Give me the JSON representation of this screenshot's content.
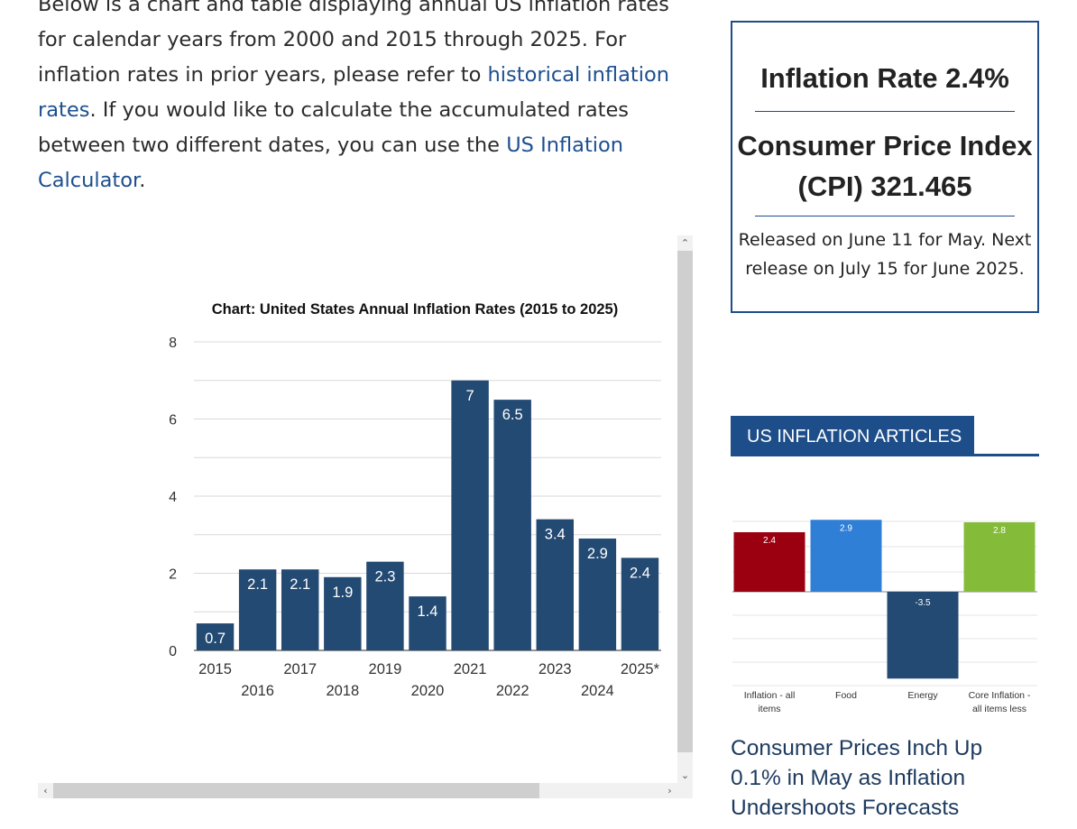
{
  "intro": {
    "text1": "Below is a chart and table displaying annual US inflation rates for calendar years from 2000 and 2015 through 2025. For inflation rates in prior years, please refer to ",
    "link1": "historical inflation rates",
    "text2": ". If you would like to calculate the accumulated rates between two different dates, you can use the ",
    "link2": "US Inflation Calculator",
    "text3": "."
  },
  "chart_data": {
    "type": "bar",
    "title": "Chart: United States Annual Inflation Rates (2015 to 2025)",
    "categories": [
      "2015",
      "2016",
      "2017",
      "2018",
      "2019",
      "2020",
      "2021",
      "2022",
      "2023",
      "2024",
      "2025*"
    ],
    "values": [
      0.7,
      2.1,
      2.1,
      1.9,
      2.3,
      1.4,
      7,
      6.5,
      3.4,
      2.9,
      2.4
    ],
    "value_labels": [
      "0.7",
      "2.1",
      "2.1",
      "1.9",
      "2.3",
      "1.4",
      "7",
      "6.5",
      "3.4",
      "2.9",
      "2.4"
    ],
    "ylim": [
      0,
      8
    ],
    "yticks": [
      "0",
      "2",
      "4",
      "6",
      "8"
    ],
    "grid": true,
    "bar_color": "#234a73"
  },
  "stats": {
    "rate": "Inflation Rate 2.4%",
    "cpi_line1": "Consumer Price Index",
    "cpi_line2": "(CPI) 321.465",
    "release_line1": "Released on June 11 for May. Next",
    "release_line2": "release on July 15 for June 2025."
  },
  "articles": {
    "heading": "US INFLATION ARTICLES",
    "article_title": "Consumer Prices Inch Up 0.1% in May as Inflation Undershoots Forecasts",
    "thumbnail_chart": {
      "type": "bar",
      "categories": [
        "Inflation - all items",
        "Food",
        "Energy",
        "Core Inflation - all items less"
      ],
      "values": [
        2.4,
        2.9,
        -3.5,
        2.8
      ],
      "value_labels": [
        "2.4",
        "2.9",
        "-3.5",
        "2.8"
      ],
      "colors": [
        "#9b0010",
        "#2f7fd6",
        "#234a73",
        "#84bc3a"
      ]
    }
  },
  "icons": {
    "up": "▲",
    "down": "▼",
    "left": "◀",
    "right": "▶"
  }
}
